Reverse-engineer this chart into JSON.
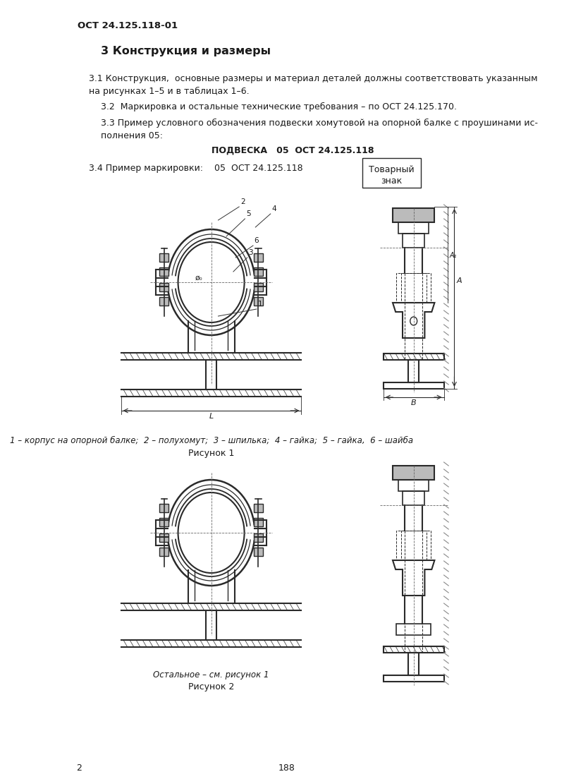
{
  "page_header": "ОСТ 24.125.118-01",
  "section_title": "3 Конструкция и размеры",
  "para_31": "3.1 Конструкция,  основные размеры и материал деталей должны соответствовать указанным\nна рисунках 1–5 и в таблицах 1–6.",
  "para_32": "3.2  Маркировка и остальные технические требования – по ОСТ 24.125.170.",
  "para_33": "3.3 Пример условного обозначения подвески хомутовой на опорной балке с проушинами ис-\nполнения 05:",
  "podveska_line": "ПОДВЕСКА   05  ОСТ 24.125.118",
  "para_34_label": "3.4 Пример маркировки:    05  ОСТ 24.125.118",
  "tovar_line1": "Товарный",
  "tovar_line2": "знак",
  "caption1": "1 – корпус на опорной балке;  2 – полухомут;  3 – шпилька;  4 – гайка;  5 – гайка,  6 – шайба",
  "fig1_label": "Рисунок 1",
  "caption2": "Остальное – см. рисунок 1",
  "fig2_label": "Рисунок 2",
  "page_number": "2",
  "bottom_number": "188",
  "bg_color": "#ffffff",
  "text_color": "#1a1a1a",
  "line_color": "#2a2a2a",
  "font_size_header": 9.5,
  "font_size_section": 11.5,
  "font_size_body": 9.0,
  "font_size_caption": 8.5
}
